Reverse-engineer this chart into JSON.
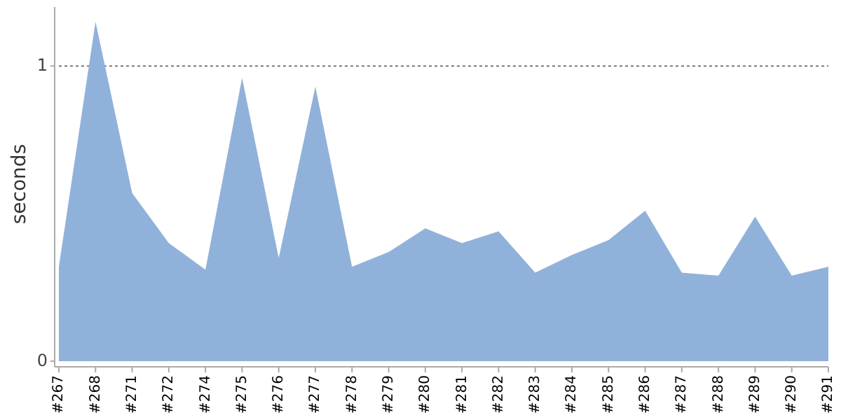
{
  "chart_data": {
    "type": "area",
    "ylabel": "seconds",
    "categories": [
      "#267",
      "#268",
      "#271",
      "#272",
      "#274",
      "#275",
      "#276",
      "#277",
      "#278",
      "#279",
      "#280",
      "#281",
      "#282",
      "#283",
      "#284",
      "#285",
      "#286",
      "#287",
      "#288",
      "#289",
      "#290",
      "#291"
    ],
    "values": [
      0.32,
      1.15,
      0.57,
      0.4,
      0.31,
      0.96,
      0.35,
      0.93,
      0.32,
      0.37,
      0.45,
      0.4,
      0.44,
      0.3,
      0.36,
      0.41,
      0.51,
      0.3,
      0.29,
      0.49,
      0.29,
      0.32
    ],
    "color": "#90b2da",
    "ylim": [
      0,
      1.2
    ],
    "yticks": [
      0,
      1
    ],
    "grid": "y"
  }
}
